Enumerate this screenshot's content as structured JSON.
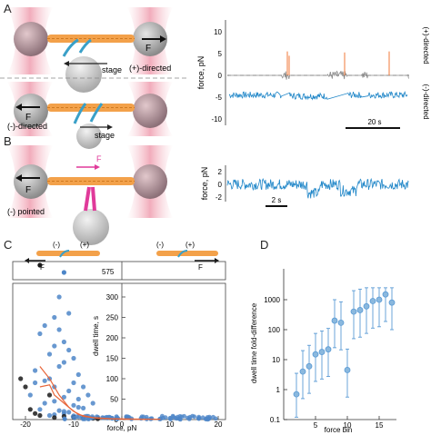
{
  "panels": {
    "a": "A",
    "b": "B",
    "c": "C",
    "d": "D"
  },
  "panel_a": {
    "schematic_top": {
      "force_label": "F",
      "stage_label": "stage",
      "direction_label": "(+)-directed"
    },
    "schematic_bottom": {
      "force_label": "F",
      "stage_label": "stage",
      "direction_label": "(-)-directed"
    },
    "trace": {
      "ylabel": "force, pN",
      "yticks": [
        "10",
        "5",
        "0",
        "-5",
        "-10"
      ],
      "scalebar_label": "20 s",
      "side_label_plus": "(+)-directed",
      "side_label_minus": "(-)-directed"
    }
  },
  "panel_b": {
    "schematic": {
      "force_left": "F",
      "force_top": "F",
      "direction_label": "(-) pointed"
    },
    "trace": {
      "ylabel": "force, pN",
      "yticks": [
        "2",
        "0",
        "-2"
      ],
      "scalebar_label": "2 s"
    }
  },
  "panel_c": {
    "header_minus_left": "(-)",
    "header_plus_left": "(+)",
    "header_minus_right": "(-)",
    "header_plus_right": "(+)",
    "force_left": "F",
    "force_right": "F",
    "break_value": "575",
    "ylabel": "dwell time, s",
    "xlabel": "force, pN",
    "yticks": [
      "300",
      "250",
      "200",
      "150",
      "100",
      "50",
      "0"
    ],
    "xticks": [
      "-20",
      "-10",
      "0",
      "10",
      "20"
    ],
    "colors": {
      "black": "#1a1a1a",
      "blue": "#4d86c8",
      "orange": "#e8663a"
    }
  },
  "panel_d": {
    "ylabel": "dwell time fold-difference",
    "xlabel": "force bin",
    "yticks": [
      "1000",
      "100",
      "10",
      "1",
      "0.1"
    ],
    "xticks": [
      "5",
      "10",
      "15"
    ],
    "color": "#5b9bd5"
  },
  "chart_data": [
    {
      "type": "line",
      "panel": "A",
      "ylabel": "force, pN",
      "ylim": [
        -12,
        12
      ],
      "series": [
        {
          "color": "#888888",
          "segments": "plus-directed baseline near 0 pN"
        },
        {
          "color": "#1f86c8",
          "segments": "minus-directed events near -7 to -10 pN"
        },
        {
          "color": "#f07838",
          "segments": "spikes up to ~11 pN"
        }
      ]
    },
    {
      "type": "line",
      "panel": "B",
      "ylabel": "force, pN",
      "ylim": [
        -3,
        3
      ]
    },
    {
      "type": "scatter",
      "panel": "C",
      "xlabel": "force, pN",
      "ylabel": "dwell time, s",
      "xlim": [
        -22,
        22
      ],
      "ylim": [
        0,
        330
      ],
      "broken_axis_value": 575,
      "series": [
        {
          "color": "#4d86c8",
          "x": [
            -19,
            -18,
            -17,
            -16,
            -15,
            -14,
            -14,
            -13,
            -12,
            -12,
            -11,
            -10,
            -10,
            -9,
            -8,
            -7,
            -6,
            -15,
            -13,
            -11,
            -16,
            -12,
            -14,
            -10,
            -9,
            -17,
            -8,
            -13,
            -11,
            -12,
            -14,
            -15,
            -10,
            -7,
            -5,
            -4,
            -3,
            -2,
            -1,
            2,
            4,
            6,
            8,
            10,
            12,
            14,
            16,
            18,
            -18,
            -16,
            -13,
            -11,
            -9,
            -12,
            -14
          ],
          "y": [
            60,
            120,
            210,
            230,
            160,
            250,
            180,
            220,
            190,
            140,
            170,
            150,
            90,
            110,
            80,
            60,
            40,
            100,
            130,
            70,
            95,
            55,
            45,
            35,
            30,
            25,
            28,
            22,
            18,
            15,
            12,
            10,
            9,
            8,
            6,
            5,
            4,
            3,
            2,
            2,
            3,
            2,
            2,
            3,
            2,
            2,
            3,
            2,
            90,
            40,
            300,
            260,
            50,
            20,
            80
          ]
        },
        {
          "color": "#1a1a1a",
          "x": [
            -21,
            -20,
            -19,
            -18,
            -17,
            -15,
            -14,
            -12,
            -10,
            -8,
            -6,
            -5
          ],
          "y": [
            100,
            80,
            25,
            15,
            10,
            60,
            5,
            8,
            6,
            4,
            3,
            2
          ]
        }
      ]
    },
    {
      "type": "scatter",
      "panel": "D",
      "xlabel": "force bin",
      "ylabel": "dwell time fold-difference",
      "yscale": "log",
      "ylim": [
        0.1,
        3000
      ],
      "x": [
        2,
        3,
        4,
        5,
        6,
        7,
        8,
        9,
        10,
        11,
        12,
        13,
        14,
        15,
        16,
        17
      ],
      "y": [
        0.7,
        4,
        6,
        15,
        18,
        22,
        200,
        170,
        4.5,
        400,
        450,
        600,
        900,
        1000,
        1500,
        800
      ]
    }
  ]
}
